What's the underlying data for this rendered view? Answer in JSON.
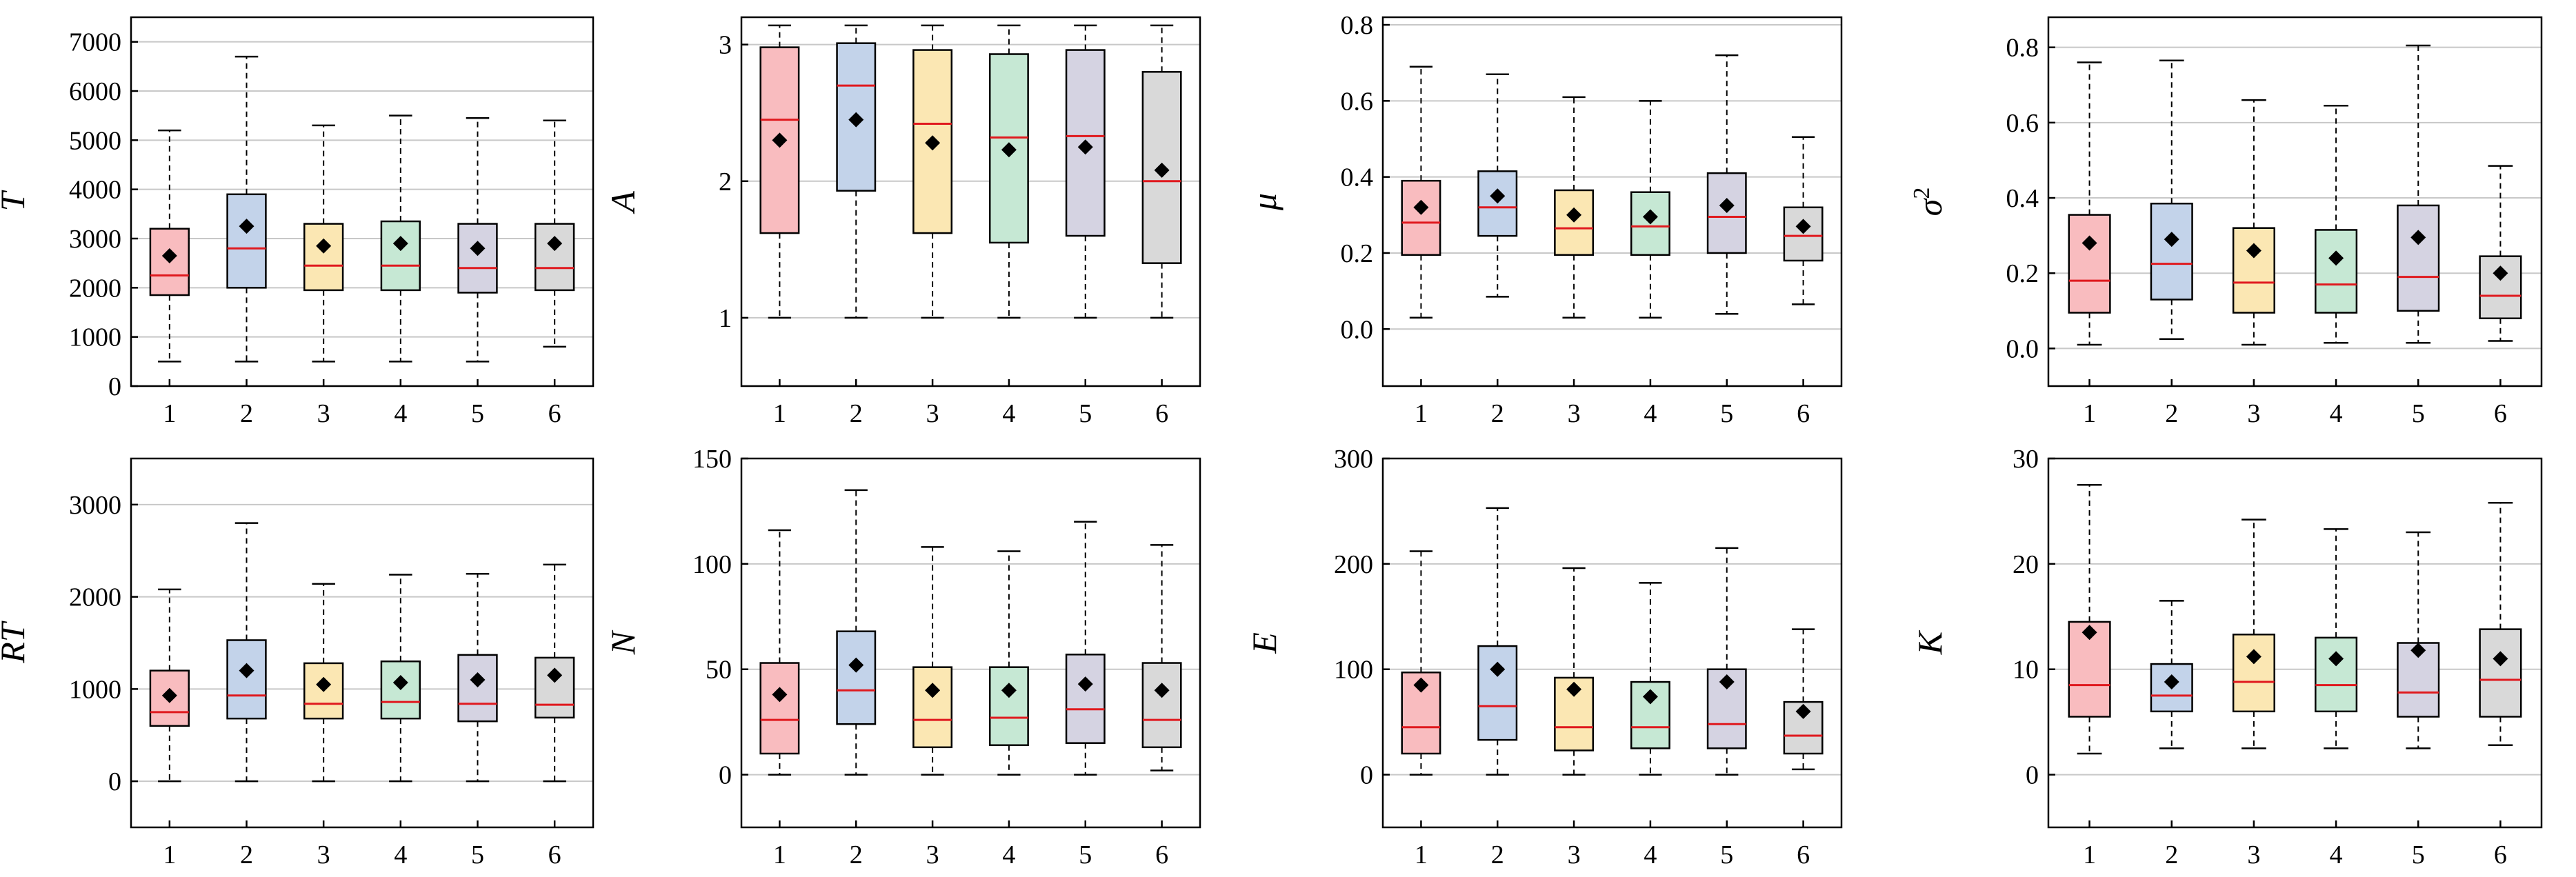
{
  "colors": {
    "box_fills": [
      "#f9bcbf",
      "#c3d3ea",
      "#fbe7b3",
      "#c6e8d4",
      "#d5d3e2",
      "#d9d9d9"
    ],
    "median": "#e0191e",
    "mean": "#000000",
    "grid": "#c8c8c8",
    "axis": "#000000"
  },
  "chart_data": [
    {
      "type": "boxplot",
      "title": "",
      "ylabel": "T",
      "ylabel_sup": "",
      "categories": [
        "1",
        "2",
        "3",
        "4",
        "5",
        "6"
      ],
      "ylim": [
        0,
        7500
      ],
      "yticks": [
        0,
        1000,
        2000,
        3000,
        4000,
        5000,
        6000,
        7000
      ],
      "ytick_labels": [
        "0",
        "1000",
        "2000",
        "3000",
        "4000",
        "5000",
        "6000",
        "7000"
      ],
      "grid": true,
      "boxes": [
        {
          "whisker_low": 500,
          "q1": 1850,
          "median": 2250,
          "q3": 3200,
          "whisker_high": 5200,
          "mean": 2650
        },
        {
          "whisker_low": 500,
          "q1": 2000,
          "median": 2800,
          "q3": 3900,
          "whisker_high": 6700,
          "mean": 3250
        },
        {
          "whisker_low": 500,
          "q1": 1950,
          "median": 2450,
          "q3": 3300,
          "whisker_high": 5300,
          "mean": 2850
        },
        {
          "whisker_low": 500,
          "q1": 1950,
          "median": 2450,
          "q3": 3350,
          "whisker_high": 5500,
          "mean": 2900
        },
        {
          "whisker_low": 500,
          "q1": 1900,
          "median": 2400,
          "q3": 3300,
          "whisker_high": 5450,
          "mean": 2800
        },
        {
          "whisker_low": 800,
          "q1": 1950,
          "median": 2400,
          "q3": 3300,
          "whisker_high": 5400,
          "mean": 2900
        }
      ]
    },
    {
      "type": "boxplot",
      "title": "",
      "ylabel": "A",
      "ylabel_sup": "",
      "categories": [
        "1",
        "2",
        "3",
        "4",
        "5",
        "6"
      ],
      "ylim": [
        0.5,
        3.2
      ],
      "yticks": [
        1,
        2,
        3
      ],
      "ytick_labels": [
        "1",
        "2",
        "3"
      ],
      "grid": true,
      "boxes": [
        {
          "whisker_low": 1.0,
          "q1": 1.62,
          "median": 2.45,
          "q3": 2.98,
          "whisker_high": 3.14,
          "mean": 2.3
        },
        {
          "whisker_low": 1.0,
          "q1": 1.93,
          "median": 2.7,
          "q3": 3.01,
          "whisker_high": 3.14,
          "mean": 2.45
        },
        {
          "whisker_low": 1.0,
          "q1": 1.62,
          "median": 2.42,
          "q3": 2.96,
          "whisker_high": 3.14,
          "mean": 2.28
        },
        {
          "whisker_low": 1.0,
          "q1": 1.55,
          "median": 2.32,
          "q3": 2.93,
          "whisker_high": 3.14,
          "mean": 2.23
        },
        {
          "whisker_low": 1.0,
          "q1": 1.6,
          "median": 2.33,
          "q3": 2.96,
          "whisker_high": 3.14,
          "mean": 2.25
        },
        {
          "whisker_low": 1.0,
          "q1": 1.4,
          "median": 2.0,
          "q3": 2.8,
          "whisker_high": 3.14,
          "mean": 2.08
        }
      ]
    },
    {
      "type": "boxplot",
      "title": "",
      "ylabel": "μ",
      "ylabel_sup": "",
      "categories": [
        "1",
        "2",
        "3",
        "4",
        "5",
        "6"
      ],
      "ylim": [
        -0.15,
        0.82
      ],
      "yticks": [
        0.0,
        0.2,
        0.4,
        0.6,
        0.8
      ],
      "ytick_labels": [
        "0.0",
        "0.2",
        "0.4",
        "0.6",
        "0.8"
      ],
      "grid": true,
      "boxes": [
        {
          "whisker_low": 0.03,
          "q1": 0.195,
          "median": 0.28,
          "q3": 0.39,
          "whisker_high": 0.69,
          "mean": 0.32
        },
        {
          "whisker_low": 0.085,
          "q1": 0.245,
          "median": 0.32,
          "q3": 0.415,
          "whisker_high": 0.67,
          "mean": 0.35
        },
        {
          "whisker_low": 0.03,
          "q1": 0.195,
          "median": 0.265,
          "q3": 0.365,
          "whisker_high": 0.61,
          "mean": 0.3
        },
        {
          "whisker_low": 0.03,
          "q1": 0.195,
          "median": 0.27,
          "q3": 0.36,
          "whisker_high": 0.6,
          "mean": 0.295
        },
        {
          "whisker_low": 0.04,
          "q1": 0.2,
          "median": 0.295,
          "q3": 0.41,
          "whisker_high": 0.72,
          "mean": 0.325
        },
        {
          "whisker_low": 0.065,
          "q1": 0.18,
          "median": 0.245,
          "q3": 0.32,
          "whisker_high": 0.505,
          "mean": 0.27
        }
      ]
    },
    {
      "type": "boxplot",
      "title": "",
      "ylabel": "σ",
      "ylabel_sup": "2",
      "categories": [
        "1",
        "2",
        "3",
        "4",
        "5",
        "6"
      ],
      "ylim": [
        -0.1,
        0.88
      ],
      "yticks": [
        0.0,
        0.2,
        0.4,
        0.6,
        0.8
      ],
      "ytick_labels": [
        "0.0",
        "0.2",
        "0.4",
        "0.6",
        "0.8"
      ],
      "grid": true,
      "boxes": [
        {
          "whisker_low": 0.01,
          "q1": 0.095,
          "median": 0.18,
          "q3": 0.355,
          "whisker_high": 0.76,
          "mean": 0.28
        },
        {
          "whisker_low": 0.025,
          "q1": 0.13,
          "median": 0.225,
          "q3": 0.385,
          "whisker_high": 0.765,
          "mean": 0.29
        },
        {
          "whisker_low": 0.01,
          "q1": 0.095,
          "median": 0.175,
          "q3": 0.32,
          "whisker_high": 0.66,
          "mean": 0.26
        },
        {
          "whisker_low": 0.015,
          "q1": 0.095,
          "median": 0.17,
          "q3": 0.315,
          "whisker_high": 0.645,
          "mean": 0.24
        },
        {
          "whisker_low": 0.015,
          "q1": 0.1,
          "median": 0.19,
          "q3": 0.38,
          "whisker_high": 0.805,
          "mean": 0.295
        },
        {
          "whisker_low": 0.02,
          "q1": 0.08,
          "median": 0.14,
          "q3": 0.245,
          "whisker_high": 0.485,
          "mean": 0.2
        }
      ]
    },
    {
      "type": "boxplot",
      "title": "",
      "ylabel": "RT",
      "ylabel_sup": "",
      "categories": [
        "1",
        "2",
        "3",
        "4",
        "5",
        "6"
      ],
      "ylim": [
        -500,
        3500
      ],
      "yticks": [
        0,
        1000,
        2000,
        3000
      ],
      "ytick_labels": [
        "0",
        "1000",
        "2000",
        "3000"
      ],
      "grid": true,
      "boxes": [
        {
          "whisker_low": 0,
          "q1": 600,
          "median": 750,
          "q3": 1200,
          "whisker_high": 2080,
          "mean": 930
        },
        {
          "whisker_low": 0,
          "q1": 680,
          "median": 930,
          "q3": 1530,
          "whisker_high": 2800,
          "mean": 1200
        },
        {
          "whisker_low": 0,
          "q1": 680,
          "median": 840,
          "q3": 1280,
          "whisker_high": 2140,
          "mean": 1050
        },
        {
          "whisker_low": 0,
          "q1": 680,
          "median": 860,
          "q3": 1300,
          "whisker_high": 2240,
          "mean": 1070
        },
        {
          "whisker_low": 0,
          "q1": 650,
          "median": 840,
          "q3": 1370,
          "whisker_high": 2250,
          "mean": 1100
        },
        {
          "whisker_low": 0,
          "q1": 690,
          "median": 830,
          "q3": 1340,
          "whisker_high": 2350,
          "mean": 1150
        }
      ]
    },
    {
      "type": "boxplot",
      "title": "",
      "ylabel": "N",
      "ylabel_sup": "",
      "categories": [
        "1",
        "2",
        "3",
        "4",
        "5",
        "6"
      ],
      "ylim": [
        -25,
        150
      ],
      "yticks": [
        0,
        50,
        100,
        150
      ],
      "ytick_labels": [
        "0",
        "50",
        "100",
        "150"
      ],
      "grid": true,
      "boxes": [
        {
          "whisker_low": 0,
          "q1": 10,
          "median": 26,
          "q3": 53,
          "whisker_high": 116,
          "mean": 38
        },
        {
          "whisker_low": 0,
          "q1": 24,
          "median": 40,
          "q3": 68,
          "whisker_high": 135,
          "mean": 52
        },
        {
          "whisker_low": 0,
          "q1": 13,
          "median": 26,
          "q3": 51,
          "whisker_high": 108,
          "mean": 40
        },
        {
          "whisker_low": 0,
          "q1": 14,
          "median": 27,
          "q3": 51,
          "whisker_high": 106,
          "mean": 40
        },
        {
          "whisker_low": 0,
          "q1": 15,
          "median": 31,
          "q3": 57,
          "whisker_high": 120,
          "mean": 43
        },
        {
          "whisker_low": 2,
          "q1": 13,
          "median": 26,
          "q3": 53,
          "whisker_high": 109,
          "mean": 40
        }
      ]
    },
    {
      "type": "boxplot",
      "title": "",
      "ylabel": "E",
      "ylabel_sup": "",
      "categories": [
        "1",
        "2",
        "3",
        "4",
        "5",
        "6"
      ],
      "ylim": [
        -50,
        300
      ],
      "yticks": [
        0,
        100,
        200,
        300
      ],
      "ytick_labels": [
        "0",
        "100",
        "200",
        "300"
      ],
      "grid": true,
      "boxes": [
        {
          "whisker_low": 0,
          "q1": 20,
          "median": 45,
          "q3": 97,
          "whisker_high": 212,
          "mean": 85
        },
        {
          "whisker_low": 0,
          "q1": 33,
          "median": 65,
          "q3": 122,
          "whisker_high": 253,
          "mean": 100
        },
        {
          "whisker_low": 0,
          "q1": 23,
          "median": 45,
          "q3": 92,
          "whisker_high": 196,
          "mean": 81
        },
        {
          "whisker_low": 0,
          "q1": 25,
          "median": 45,
          "q3": 88,
          "whisker_high": 182,
          "mean": 74
        },
        {
          "whisker_low": 0,
          "q1": 25,
          "median": 48,
          "q3": 100,
          "whisker_high": 215,
          "mean": 88
        },
        {
          "whisker_low": 5,
          "q1": 20,
          "median": 37,
          "q3": 69,
          "whisker_high": 138,
          "mean": 60
        }
      ]
    },
    {
      "type": "boxplot",
      "title": "",
      "ylabel": "K",
      "ylabel_sup": "",
      "categories": [
        "1",
        "2",
        "3",
        "4",
        "5",
        "6"
      ],
      "ylim": [
        -5,
        30
      ],
      "yticks": [
        0,
        10,
        20,
        30
      ],
      "ytick_labels": [
        "0",
        "10",
        "20",
        "30"
      ],
      "grid": true,
      "boxes": [
        {
          "whisker_low": 2,
          "q1": 5.5,
          "median": 8.5,
          "q3": 14.5,
          "whisker_high": 27.5,
          "mean": 13.5
        },
        {
          "whisker_low": 2.5,
          "q1": 6,
          "median": 7.5,
          "q3": 10.5,
          "whisker_high": 16.5,
          "mean": 8.8
        },
        {
          "whisker_low": 2.5,
          "q1": 6,
          "median": 8.8,
          "q3": 13.3,
          "whisker_high": 24.2,
          "mean": 11.2
        },
        {
          "whisker_low": 2.5,
          "q1": 6,
          "median": 8.5,
          "q3": 13,
          "whisker_high": 23.3,
          "mean": 11
        },
        {
          "whisker_low": 2.5,
          "q1": 5.5,
          "median": 7.8,
          "q3": 12.5,
          "whisker_high": 23,
          "mean": 11.8
        },
        {
          "whisker_low": 2.8,
          "q1": 5.5,
          "median": 9,
          "q3": 13.8,
          "whisker_high": 25.8,
          "mean": 11
        }
      ]
    }
  ]
}
